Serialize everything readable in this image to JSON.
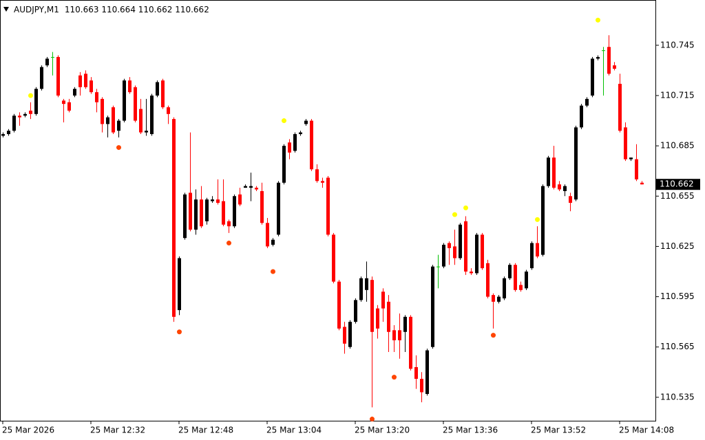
{
  "chart_data": {
    "type": "candlestick",
    "title": "AUDJPY,M1",
    "subtitle": "110.663 110.664 110.662 110.662",
    "last_price": 110.662,
    "up_color": "#000000",
    "down_color": "#ff0000",
    "doji_color": "#00c000",
    "open": [
      110.691,
      110.692,
      110.694,
      110.703,
      110.703,
      110.706,
      110.704,
      110.719,
      110.733,
      110.738,
      110.738,
      110.712,
      110.711,
      110.715,
      110.727,
      110.728,
      110.724,
      110.717,
      110.713,
      110.698,
      110.708,
      110.694,
      110.7,
      110.724,
      110.72,
      110.707,
      110.693,
      110.692,
      110.715,
      110.724,
      110.708,
      110.701,
      110.587,
      110.63,
      110.657,
      110.635,
      110.653,
      110.64,
      110.652,
      110.653,
      110.652,
      110.64,
      110.637,
      110.656,
      110.66,
      110.66,
      110.66,
      110.658,
      110.639,
      110.626,
      110.632,
      110.663,
      110.687,
      110.682,
      110.692,
      110.698,
      110.7,
      110.671,
      110.664,
      110.666,
      110.632,
      110.604,
      110.577,
      110.565,
      110.58,
      110.593,
      110.599,
      110.605,
      110.588,
      110.598,
      110.592,
      110.575,
      110.575,
      110.574,
      110.583,
      110.553,
      110.546,
      110.537,
      110.565,
      110.613,
      110.613,
      110.627,
      110.625,
      110.618,
      110.64,
      110.61,
      110.609,
      110.632,
      110.615,
      110.596,
      110.592,
      110.594,
      110.606,
      110.614,
      110.602,
      110.6,
      110.612,
      110.627,
      110.62,
      110.661,
      110.678,
      110.662,
      110.658,
      110.655,
      110.653,
      110.696,
      110.709,
      110.715,
      110.737,
      110.742,
      110.744,
      110.733,
      110.722,
      110.696,
      110.677,
      110.677,
      110.663
    ],
    "high": [
      110.693,
      110.695,
      110.704,
      110.705,
      110.705,
      110.711,
      110.72,
      110.733,
      110.738,
      110.741,
      110.739,
      110.713,
      110.713,
      110.72,
      110.729,
      110.73,
      110.726,
      110.719,
      110.714,
      110.703,
      110.709,
      110.701,
      110.725,
      110.726,
      110.721,
      110.713,
      110.713,
      110.716,
      110.724,
      110.725,
      110.709,
      110.702,
      110.619,
      110.657,
      110.693,
      110.659,
      110.661,
      110.654,
      110.655,
      110.665,
      110.665,
      110.641,
      110.656,
      110.66,
      110.662,
      110.669,
      110.661,
      110.663,
      110.642,
      110.63,
      110.664,
      110.686,
      110.689,
      110.693,
      110.694,
      110.701,
      110.701,
      110.674,
      110.666,
      110.667,
      110.633,
      110.605,
      110.58,
      110.581,
      110.594,
      110.607,
      110.616,
      110.607,
      110.59,
      110.6,
      110.596,
      110.578,
      110.585,
      110.584,
      110.584,
      110.56,
      110.55,
      110.564,
      110.614,
      110.62,
      110.627,
      110.628,
      110.635,
      110.639,
      110.643,
      110.612,
      110.633,
      110.633,
      110.617,
      110.597,
      110.596,
      110.607,
      110.615,
      110.615,
      110.604,
      110.611,
      110.628,
      110.637,
      110.662,
      110.679,
      110.685,
      110.664,
      110.662,
      110.657,
      110.697,
      110.71,
      110.714,
      110.738,
      110.739,
      110.744,
      110.751,
      110.735,
      110.728,
      110.699,
      110.678,
      110.686,
      110.664
    ],
    "low": [
      110.69,
      110.691,
      110.693,
      110.697,
      110.702,
      110.701,
      110.703,
      110.718,
      110.732,
      110.727,
      110.714,
      110.699,
      110.705,
      110.714,
      110.715,
      110.719,
      110.716,
      110.705,
      110.693,
      110.69,
      110.692,
      110.69,
      110.699,
      110.716,
      110.699,
      110.692,
      110.691,
      110.691,
      110.714,
      110.707,
      110.698,
      110.58,
      110.584,
      110.629,
      110.634,
      110.632,
      110.636,
      110.638,
      110.651,
      110.65,
      110.637,
      110.633,
      110.636,
      110.649,
      110.66,
      110.652,
      110.658,
      110.638,
      110.624,
      110.625,
      110.631,
      110.662,
      110.677,
      110.681,
      110.691,
      110.697,
      110.67,
      110.663,
      110.66,
      110.631,
      110.603,
      110.575,
      110.561,
      110.564,
      110.579,
      110.592,
      110.592,
      110.529,
      110.57,
      110.58,
      110.562,
      110.562,
      110.558,
      110.562,
      110.551,
      110.54,
      110.532,
      110.536,
      110.564,
      110.6,
      110.612,
      110.614,
      110.614,
      110.617,
      110.608,
      110.608,
      110.608,
      110.611,
      110.594,
      110.576,
      110.591,
      110.593,
      110.605,
      110.598,
      110.598,
      110.599,
      110.611,
      110.618,
      110.619,
      110.66,
      110.659,
      110.658,
      110.655,
      110.646,
      110.652,
      110.695,
      110.708,
      110.714,
      110.736,
      110.715,
      110.727,
      110.73,
      110.693,
      110.676,
      110.676,
      110.664,
      110.662
    ],
    "close": [
      110.692,
      110.694,
      110.703,
      110.702,
      110.704,
      110.704,
      110.719,
      110.732,
      110.737,
      110.738,
      110.715,
      110.71,
      110.706,
      110.719,
      110.72,
      110.72,
      110.717,
      110.711,
      110.698,
      110.702,
      110.693,
      110.7,
      110.724,
      110.717,
      110.7,
      110.693,
      110.694,
      110.715,
      110.723,
      110.708,
      110.704,
      110.583,
      110.618,
      110.656,
      110.635,
      110.653,
      110.637,
      110.653,
      110.653,
      110.651,
      110.638,
      110.637,
      110.655,
      110.65,
      110.661,
      110.661,
      110.659,
      110.639,
      110.625,
      110.629,
      110.663,
      110.685,
      110.681,
      110.692,
      110.693,
      110.7,
      110.671,
      110.664,
      110.663,
      110.632,
      110.604,
      110.576,
      110.567,
      110.58,
      110.593,
      110.606,
      110.606,
      110.574,
      110.576,
      110.588,
      110.574,
      110.569,
      110.569,
      110.583,
      110.552,
      110.546,
      110.538,
      110.563,
      110.613,
      110.613,
      110.626,
      110.624,
      110.618,
      110.638,
      110.61,
      110.609,
      110.632,
      110.612,
      110.595,
      110.592,
      110.595,
      110.606,
      110.614,
      110.599,
      110.599,
      110.61,
      110.627,
      110.619,
      110.661,
      110.678,
      110.66,
      110.659,
      110.661,
      110.651,
      110.696,
      110.709,
      110.713,
      110.737,
      110.738,
      110.742,
      110.728,
      110.731,
      110.694,
      110.677,
      110.678,
      110.665,
      110.662
    ],
    "markers": [
      {
        "color": "#ffff00",
        "x": [
          5,
          51,
          82,
          84,
          97,
          108
        ],
        "values": [
          110.715,
          110.7,
          110.644,
          110.648,
          110.641,
          110.76
        ]
      },
      {
        "color": "#ff4500",
        "x": [
          21,
          32,
          41,
          49,
          67,
          71,
          89
        ],
        "values": [
          110.684,
          110.574,
          110.627,
          110.61,
          110.522,
          110.547,
          110.572
        ]
      }
    ],
    "xlim": [
      -0.5,
      118.5
    ],
    "ylim": [
      110.521,
      110.772
    ],
    "xticks": [
      {
        "value": 0,
        "label": "25 Mar 2026"
      },
      {
        "value": 16,
        "label": "25 Mar 12:32"
      },
      {
        "value": 32,
        "label": "25 Mar 12:48"
      },
      {
        "value": 48,
        "label": "25 Mar 13:04"
      },
      {
        "value": 64,
        "label": "25 Mar 13:20"
      },
      {
        "value": 80,
        "label": "25 Mar 13:36"
      },
      {
        "value": 96,
        "label": "25 Mar 13:52"
      },
      {
        "value": 112,
        "label": "25 Mar 14:08"
      }
    ],
    "yticks": [
      110.745,
      110.715,
      110.685,
      110.655,
      110.625,
      110.595,
      110.565,
      110.535
    ]
  }
}
